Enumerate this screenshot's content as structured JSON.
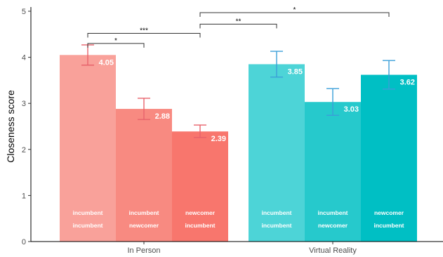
{
  "chart_data": {
    "type": "bar",
    "ylabel": "Closeness score",
    "ylim": [
      0,
      5
    ],
    "yticks": [
      "0",
      "1",
      "2",
      "3",
      "4",
      "5"
    ],
    "groups": [
      {
        "label": "In Person",
        "bars": [
          {
            "value": 4.05,
            "value_label": "4.05",
            "err_low": 3.83,
            "err_high": 4.27,
            "line1": "incumbent",
            "line2": "incumbent",
            "color": "#f9a19a",
            "err_color": "#e8626b"
          },
          {
            "value": 2.88,
            "value_label": "2.88",
            "err_low": 2.65,
            "err_high": 3.11,
            "line1": "incumbent",
            "line2": "newcomer",
            "color": "#f88a81",
            "err_color": "#e8626b"
          },
          {
            "value": 2.39,
            "value_label": "2.39",
            "err_low": 2.26,
            "err_high": 2.53,
            "line1": "newcomer",
            "line2": "incumbent",
            "color": "#f8766d",
            "err_color": "#e8626b"
          }
        ]
      },
      {
        "label": "Virtual Reality",
        "bars": [
          {
            "value": 3.85,
            "value_label": "3.85",
            "err_low": 3.57,
            "err_high": 4.13,
            "line1": "incumbent",
            "line2": "incumbent",
            "color": "#4dd4d7",
            "err_color": "#3a9fd9"
          },
          {
            "value": 3.03,
            "value_label": "3.03",
            "err_low": 2.74,
            "err_high": 3.32,
            "line1": "incumbent",
            "line2": "newcomer",
            "color": "#26c9cc",
            "err_color": "#3a9fd9"
          },
          {
            "value": 3.62,
            "value_label": "3.62",
            "err_low": 3.31,
            "err_high": 3.93,
            "line1": "newcomer",
            "line2": "incumbent",
            "color": "#00bfc4",
            "err_color": "#3a9fd9"
          }
        ]
      }
    ],
    "significance": [
      {
        "from": [
          0,
          0
        ],
        "to": [
          0,
          1
        ],
        "value": 4.3,
        "label": "*"
      },
      {
        "from": [
          0,
          0
        ],
        "to": [
          0,
          2
        ],
        "value": 4.52,
        "label": "***"
      },
      {
        "from": [
          0,
          2
        ],
        "to": [
          1,
          0
        ],
        "value": 4.72,
        "label": "**"
      },
      {
        "from": [
          0,
          2
        ],
        "to": [
          1,
          2
        ],
        "value": 4.97,
        "label": "*"
      }
    ]
  }
}
